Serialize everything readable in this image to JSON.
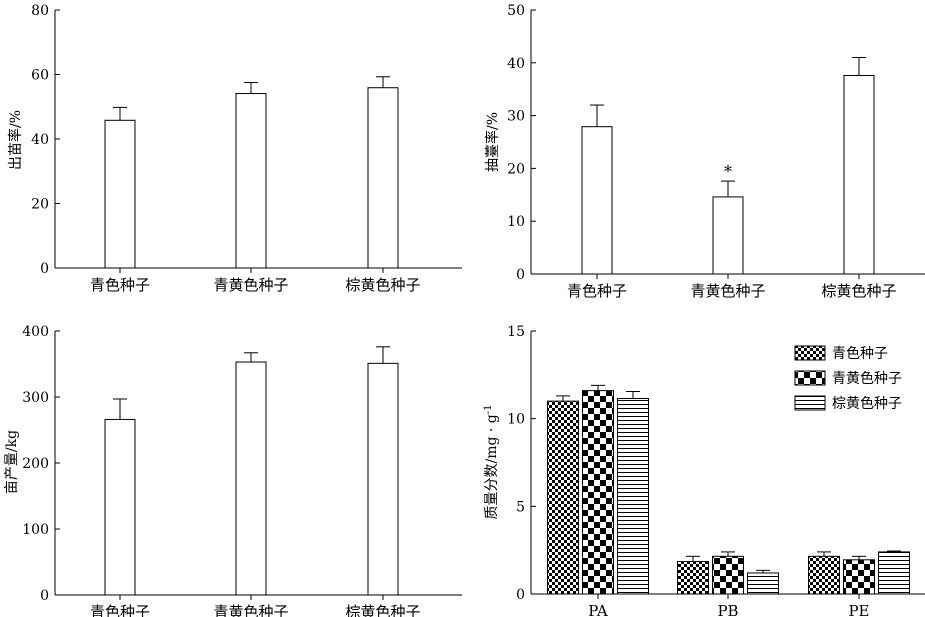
{
  "chart_data": [
    {
      "type": "bar",
      "categories": [
        "青色种子",
        "青黄色种子",
        "棕黄色种子"
      ],
      "values": [
        45.8,
        54.1,
        55.9
      ],
      "errors": [
        4.0,
        3.4,
        3.4
      ],
      "ylabel": "出苗率/%",
      "ylim": [
        0,
        80
      ],
      "yticks": [
        0,
        20,
        40,
        60,
        80
      ],
      "annotations": [
        "",
        "",
        ""
      ]
    },
    {
      "type": "bar",
      "categories": [
        "青色种子",
        "青黄色种子",
        "棕黄色种子"
      ],
      "values": [
        27.9,
        14.6,
        37.6
      ],
      "errors": [
        4.1,
        3.0,
        3.4
      ],
      "ylabel": "抽薹率/%",
      "ylim": [
        0,
        50
      ],
      "yticks": [
        0,
        10,
        20,
        30,
        40,
        50
      ],
      "annotations": [
        "",
        "*",
        ""
      ]
    },
    {
      "type": "bar",
      "categories": [
        "青色种子",
        "青黄色种子",
        "棕黄色种子"
      ],
      "values": [
        266,
        353,
        351
      ],
      "errors": [
        31,
        14,
        25
      ],
      "ylabel": "亩产量/kg",
      "ylim": [
        0,
        400
      ],
      "yticks": [
        0,
        100,
        200,
        300,
        400
      ],
      "annotations": [
        "",
        "",
        ""
      ]
    },
    {
      "type": "bar",
      "categories": [
        "PA",
        "PB",
        "PE"
      ],
      "ylabel": "质量分数/mg · g",
      "ylabel_sup": "-1",
      "ylim": [
        0,
        15
      ],
      "yticks": [
        0,
        5,
        10,
        15
      ],
      "legend": "top-right",
      "series": [
        {
          "name": "青色种子",
          "values": [
            11.0,
            1.85,
            2.15
          ],
          "errors": [
            0.3,
            0.3,
            0.25
          ],
          "pattern": "fine-check"
        },
        {
          "name": "青黄色种子",
          "values": [
            11.6,
            2.15,
            1.95
          ],
          "errors": [
            0.3,
            0.25,
            0.2
          ],
          "pattern": "coarse-check"
        },
        {
          "name": "棕黄色种子",
          "values": [
            11.15,
            1.2,
            2.4
          ],
          "errors": [
            0.4,
            0.15,
            0.05
          ],
          "pattern": "horizontal-lines"
        }
      ]
    }
  ]
}
